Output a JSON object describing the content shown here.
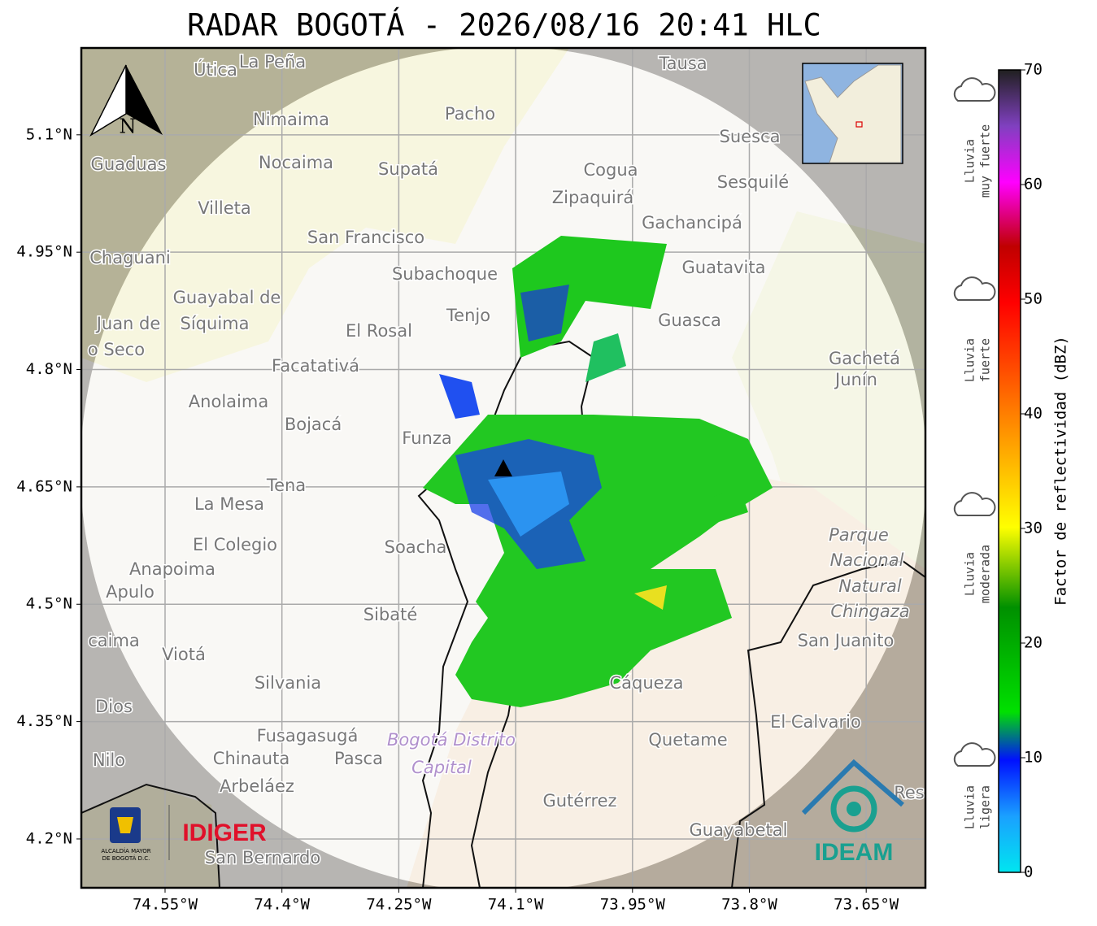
{
  "title": "RADAR BOGOTÁ - 2026/08/16 20:41 HLC",
  "map": {
    "xlim": [
      -74.6575,
      -73.574
    ],
    "ylim": [
      4.1376,
      5.211
    ],
    "xticks": [
      {
        "value": -74.55,
        "label": "74.55°W"
      },
      {
        "value": -74.4,
        "label": "74.4°W"
      },
      {
        "value": -74.25,
        "label": "74.25°W"
      },
      {
        "value": -74.1,
        "label": "74.1°W"
      },
      {
        "value": -73.95,
        "label": "73.95°W"
      },
      {
        "value": -73.8,
        "label": "73.8°W"
      },
      {
        "value": -73.65,
        "label": "73.65°W"
      }
    ],
    "yticks": [
      {
        "value": 5.1,
        "label": "5.1°N"
      },
      {
        "value": 4.95,
        "label": "4.95°N"
      },
      {
        "value": 4.8,
        "label": "4.8°N"
      },
      {
        "value": 4.65,
        "label": "4.65°N"
      },
      {
        "value": 4.5,
        "label": "4.5°N"
      },
      {
        "value": 4.35,
        "label": "4.35°N"
      },
      {
        "value": 4.2,
        "label": "4.2°N"
      }
    ],
    "grid": true,
    "north": "N",
    "places": [
      "Útica",
      "La Peña",
      "Tausa",
      "Pacho",
      "Nimaima",
      "Suesca",
      "Guaduas",
      "Nocaima",
      "Supatá",
      "Cogua",
      "Sesquilé",
      "Zipaquirá",
      "Villeta",
      "Gachancipá",
      "San Francisco",
      "Chaguani",
      "Guatavita",
      "Subachoque",
      "Guayabal de",
      "Tenjo",
      "Guasca",
      "Juan de",
      "Síquima",
      "El Rosal",
      "o Seco",
      "Gachetá",
      "Facatativá",
      "Junín",
      "Anolaima",
      "Bojacá",
      "Funza",
      "Tena",
      "La Mesa",
      "Parque",
      "El Colegio",
      "Soacha",
      "Anapoima",
      "Nacional",
      "Apulo",
      "Natural",
      "Sibaté",
      "Chingaza",
      "San Juanito",
      "caima",
      "Viotá",
      "Silvania",
      "Cáqueza",
      "Dios",
      "El Calvario",
      "Fusagasugá",
      "Bogotá Distrito",
      "Quetame",
      "Nilo",
      "Chinauta",
      "Pasca",
      "Capital",
      "Arbeláez",
      "Gutérrez",
      "Res",
      "Guayabetal",
      "San Bernardo"
    ]
  },
  "logos": {
    "alcaldia_1": "ALCALDÍA MAYOR",
    "alcaldia_2": "DE BOGOTÁ D.C.",
    "idiger": "IDIGER",
    "ideam": "IDEAM"
  },
  "colorbar": {
    "label": "Factor de reflectividad (dBZ)",
    "lim": [
      0,
      70
    ],
    "ticks": [
      0,
      10,
      20,
      30,
      40,
      50,
      60,
      70
    ]
  },
  "rain_levels": [
    {
      "line1": "Lluvia",
      "line2": "muy fuerte"
    },
    {
      "line1": "Lluvia",
      "line2": "fuerte"
    },
    {
      "line1": "Lluvia",
      "line2": "moderada"
    },
    {
      "line1": "Lluvia",
      "line2": "ligera"
    }
  ]
}
